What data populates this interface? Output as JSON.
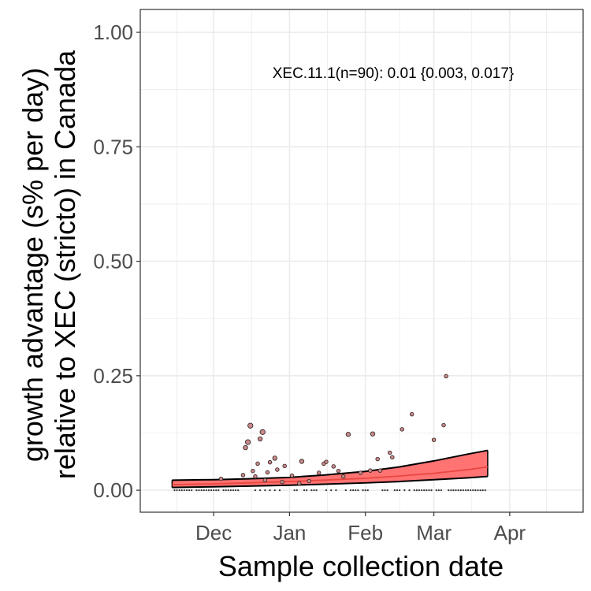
{
  "chart_data": {
    "type": "scatter",
    "title": "",
    "xlabel": "Sample collection date",
    "ylabel_line1": "growth advantage (s% per day)",
    "ylabel_line2": "relative to XEC (stricto) in Canada",
    "annotation": "XEC.11.1(n=90): 0.01 {0.003, 0.017}",
    "x_ticks": [
      {
        "label": "Dec",
        "date": "2024-12-01"
      },
      {
        "label": "Jan",
        "date": "2025-01-01"
      },
      {
        "label": "Feb",
        "date": "2025-02-01"
      },
      {
        "label": "Mar",
        "date": "2025-03-01"
      },
      {
        "label": "Apr",
        "date": "2025-04-01"
      }
    ],
    "y_ticks": [
      "0.00",
      "0.25",
      "0.50",
      "0.75",
      "1.00"
    ],
    "xlim": [
      "2024-11-01",
      "2025-05-01"
    ],
    "ylim": [
      -0.048,
      1.05
    ],
    "grid": true,
    "colors": {
      "fit_line": "#e8473f",
      "ribbon_fill": "#ff6b6b",
      "ribbon_border": "#000000",
      "points": "#8b5a5a",
      "panel_border": "#333333",
      "grid": "#ebebeb"
    },
    "fit": {
      "x": [
        "2024-11-14",
        "2024-12-01",
        "2024-12-15",
        "2025-01-01",
        "2025-01-15",
        "2025-02-01",
        "2025-02-15",
        "2025-03-01",
        "2025-03-15",
        "2025-03-23"
      ],
      "y": [
        0.012,
        0.014,
        0.016,
        0.019,
        0.022,
        0.026,
        0.031,
        0.037,
        0.045,
        0.051
      ],
      "lower": [
        0.006,
        0.0075,
        0.009,
        0.011,
        0.013,
        0.016,
        0.019,
        0.023,
        0.027,
        0.03
      ],
      "upper": [
        0.022,
        0.023,
        0.025,
        0.028,
        0.033,
        0.041,
        0.051,
        0.064,
        0.079,
        0.087
      ]
    },
    "points": [
      {
        "x": "2024-12-04",
        "y": 0.025,
        "size": 1
      },
      {
        "x": "2024-12-13",
        "y": 0.033,
        "size": 1
      },
      {
        "x": "2024-12-14",
        "y": 0.093,
        "size": 1.5
      },
      {
        "x": "2024-12-15",
        "y": 0.105,
        "size": 2
      },
      {
        "x": "2024-12-16",
        "y": 0.141,
        "size": 2
      },
      {
        "x": "2024-12-17",
        "y": 0.042,
        "size": 1
      },
      {
        "x": "2024-12-18",
        "y": 0.03,
        "size": 1
      },
      {
        "x": "2024-12-19",
        "y": 0.058,
        "size": 1
      },
      {
        "x": "2024-12-20",
        "y": 0.112,
        "size": 1.5
      },
      {
        "x": "2024-12-21",
        "y": 0.127,
        "size": 2
      },
      {
        "x": "2024-12-22",
        "y": 0.022,
        "size": 1
      },
      {
        "x": "2024-12-23",
        "y": 0.039,
        "size": 1
      },
      {
        "x": "2024-12-24",
        "y": 0.061,
        "size": 1
      },
      {
        "x": "2024-12-26",
        "y": 0.07,
        "size": 1.5
      },
      {
        "x": "2024-12-27",
        "y": 0.045,
        "size": 1
      },
      {
        "x": "2024-12-29",
        "y": 0.018,
        "size": 1
      },
      {
        "x": "2024-12-30",
        "y": 0.053,
        "size": 1
      },
      {
        "x": "2025-01-02",
        "y": 0.032,
        "size": 1
      },
      {
        "x": "2025-01-05",
        "y": 0.015,
        "size": 1
      },
      {
        "x": "2025-01-06",
        "y": 0.063,
        "size": 1.5
      },
      {
        "x": "2025-01-09",
        "y": 0.02,
        "size": 1
      },
      {
        "x": "2025-01-13",
        "y": 0.038,
        "size": 1
      },
      {
        "x": "2025-01-15",
        "y": 0.058,
        "size": 1
      },
      {
        "x": "2025-01-16",
        "y": 0.062,
        "size": 1
      },
      {
        "x": "2025-01-19",
        "y": 0.052,
        "size": 1
      },
      {
        "x": "2025-01-21",
        "y": 0.042,
        "size": 1
      },
      {
        "x": "2025-01-23",
        "y": 0.03,
        "size": 1
      },
      {
        "x": "2025-01-25",
        "y": 0.122,
        "size": 1.5
      },
      {
        "x": "2025-01-30",
        "y": 0.038,
        "size": 1
      },
      {
        "x": "2025-02-03",
        "y": 0.043,
        "size": 1
      },
      {
        "x": "2025-02-04",
        "y": 0.123,
        "size": 1.5
      },
      {
        "x": "2025-02-06",
        "y": 0.068,
        "size": 1
      },
      {
        "x": "2025-02-07",
        "y": 0.043,
        "size": 1
      },
      {
        "x": "2025-02-11",
        "y": 0.082,
        "size": 1
      },
      {
        "x": "2025-02-12",
        "y": 0.072,
        "size": 1
      },
      {
        "x": "2025-02-16",
        "y": 0.133,
        "size": 1
      },
      {
        "x": "2025-02-20",
        "y": 0.166,
        "size": 1
      },
      {
        "x": "2025-03-01",
        "y": 0.11,
        "size": 1
      },
      {
        "x": "2025-03-05",
        "y": 0.142,
        "size": 1
      },
      {
        "x": "2025-03-06",
        "y": 0.249,
        "size": 1
      }
    ],
    "zero_points": [
      "2024-11-15",
      "2024-11-16",
      "2024-11-17",
      "2024-11-18",
      "2024-11-19",
      "2024-11-20",
      "2024-11-21",
      "2024-11-22",
      "2024-11-24",
      "2024-11-25",
      "2024-11-26",
      "2024-11-27",
      "2024-11-28",
      "2024-11-29",
      "2024-11-30",
      "2024-12-01",
      "2024-12-02",
      "2024-12-03",
      "2024-12-05",
      "2024-12-06",
      "2024-12-07",
      "2024-12-08",
      "2024-12-09",
      "2024-12-10",
      "2024-12-11",
      "2024-12-18",
      "2024-12-20",
      "2024-12-22",
      "2024-12-24",
      "2024-12-26",
      "2024-12-28",
      "2025-01-03",
      "2025-01-04",
      "2025-01-07",
      "2025-01-08",
      "2025-01-10",
      "2025-01-11",
      "2025-01-12",
      "2025-01-16",
      "2025-01-18",
      "2025-01-20",
      "2025-01-24",
      "2025-01-26",
      "2025-01-27",
      "2025-01-28",
      "2025-01-29",
      "2025-01-31",
      "2025-02-01",
      "2025-02-02",
      "2025-02-08",
      "2025-02-09",
      "2025-02-10",
      "2025-02-13",
      "2025-02-14",
      "2025-02-15",
      "2025-02-17",
      "2025-02-19",
      "2025-02-21",
      "2025-02-22",
      "2025-02-23",
      "2025-02-24",
      "2025-02-25",
      "2025-02-26",
      "2025-02-27",
      "2025-02-28",
      "2025-03-02",
      "2025-03-03",
      "2025-03-04",
      "2025-03-07",
      "2025-03-08",
      "2025-03-09",
      "2025-03-10",
      "2025-03-11",
      "2025-03-12",
      "2025-03-13",
      "2025-03-14",
      "2025-03-15",
      "2025-03-16",
      "2025-03-17",
      "2025-03-18",
      "2025-03-19",
      "2025-03-20",
      "2025-03-21",
      "2025-03-22"
    ]
  }
}
